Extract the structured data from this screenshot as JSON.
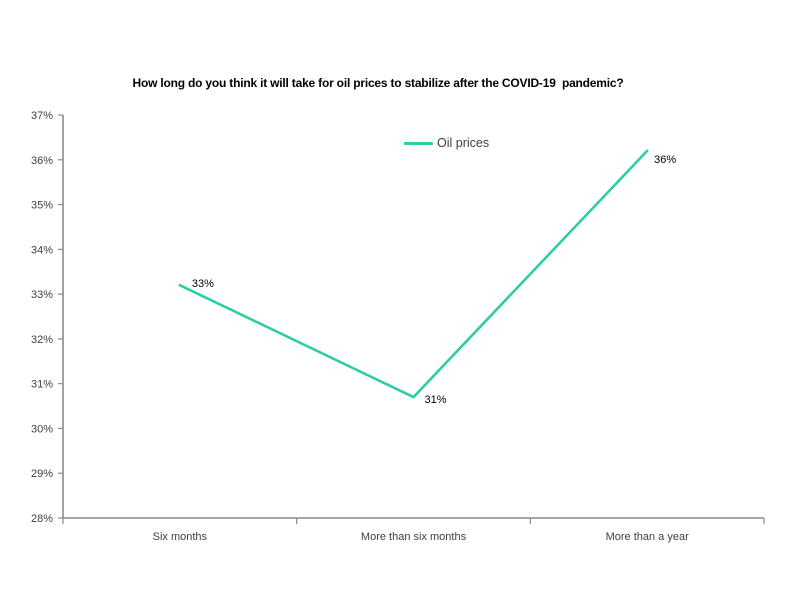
{
  "chart_data": {
    "type": "line",
    "title": "How long do you think it will take for oil prices to stabilize after the COVID-19  pandemic?",
    "categories": [
      "Six months",
      "More than six months",
      "More than a year"
    ],
    "series": [
      {
        "name": "Oil prices",
        "values": [
          33.2,
          30.7,
          36.2
        ],
        "data_labels": [
          "33%",
          "31%",
          "36%"
        ],
        "color": "#2ECDA3"
      }
    ],
    "values_as_labeled": [
      33,
      31,
      36
    ],
    "ylim": [
      28,
      37
    ],
    "ytick_step": 1,
    "ytick_labels": [
      "28%",
      "29%",
      "30%",
      "31%",
      "32%",
      "33%",
      "34%",
      "35%",
      "36%",
      "37%"
    ],
    "xlabel": "",
    "ylabel": "",
    "grid": false,
    "legend_position": "top-center",
    "colors": {
      "background": "#ffffff",
      "axis": "#8a8a8a",
      "tick_label": "#404040",
      "data_label": "#000000",
      "title": "#000000"
    }
  }
}
